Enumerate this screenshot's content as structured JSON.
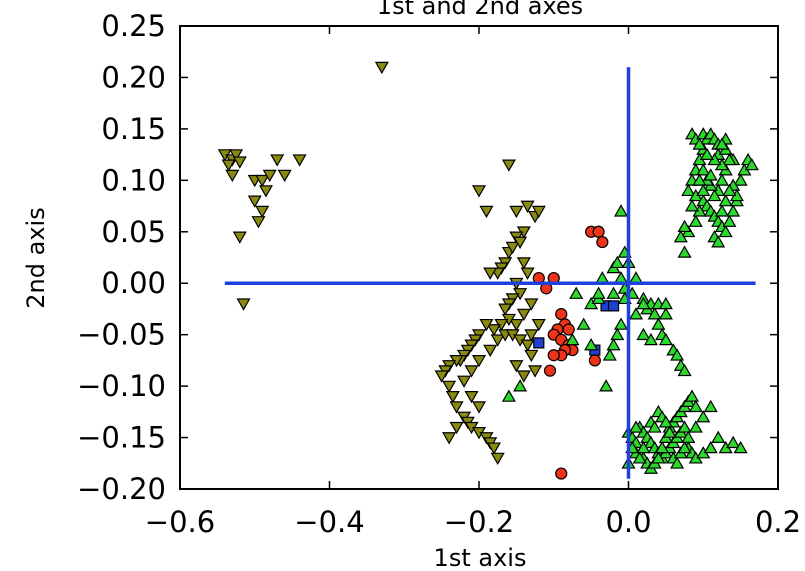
{
  "chart_data": {
    "type": "scatter",
    "title": "1st and 2nd axes",
    "xlabel": "1st axis",
    "ylabel": "2nd axis",
    "xlim": [
      -0.6,
      0.2
    ],
    "ylim": [
      -0.2,
      0.25
    ],
    "x_ticks": [
      -0.6,
      -0.4,
      -0.2,
      0.0,
      0.2
    ],
    "x_tick_labels": [
      "−0.6",
      "−0.4",
      "−0.2",
      "0.0",
      "0.2"
    ],
    "y_ticks": [
      0.25,
      0.2,
      0.15,
      0.1,
      0.05,
      0.0,
      -0.05,
      -0.1,
      -0.15,
      -0.2
    ],
    "y_tick_labels": [
      "0.25",
      "0.20",
      "0.15",
      "0.10",
      "0.05",
      "0.00",
      "−0.05",
      "−0.10",
      "−0.15",
      "−0.20"
    ],
    "grid": false,
    "legend": "none",
    "reference_lines": [
      {
        "orientation": "horizontal",
        "y": 0.0,
        "x_range": [
          -0.54,
          0.17
        ],
        "color": "#1f3fe0"
      },
      {
        "orientation": "vertical",
        "x": 0.0,
        "y_range": [
          -0.19,
          0.21
        ],
        "color": "#1f3fe0"
      }
    ],
    "series": [
      {
        "marker": "triangle-down",
        "color": "#8a8a10",
        "points": [
          [
            -0.54,
            0.125
          ],
          [
            -0.53,
            0.12
          ],
          [
            -0.535,
            0.115
          ],
          [
            -0.525,
            0.125
          ],
          [
            -0.53,
            0.105
          ],
          [
            -0.52,
            0.118
          ],
          [
            -0.52,
            0.045
          ],
          [
            -0.515,
            -0.02
          ],
          [
            -0.5,
            0.1
          ],
          [
            -0.49,
            0.1
          ],
          [
            -0.485,
            0.09
          ],
          [
            -0.49,
            0.07
          ],
          [
            -0.48,
            0.105
          ],
          [
            -0.495,
            0.06
          ],
          [
            -0.5,
            0.08
          ],
          [
            -0.47,
            0.12
          ],
          [
            -0.46,
            0.105
          ],
          [
            -0.44,
            0.12
          ],
          [
            -0.33,
            0.21
          ],
          [
            -0.16,
            0.115
          ],
          [
            -0.15,
            0.07
          ],
          [
            -0.14,
            0.05
          ],
          [
            -0.135,
            0.075
          ],
          [
            -0.125,
            0.065
          ],
          [
            -0.12,
            0.07
          ],
          [
            -0.19,
            0.07
          ],
          [
            -0.2,
            0.09
          ],
          [
            -0.16,
            0.03
          ],
          [
            -0.155,
            0.035
          ],
          [
            -0.15,
            0.045
          ],
          [
            -0.145,
            0.04
          ],
          [
            -0.165,
            0.02
          ],
          [
            -0.17,
            0.015
          ],
          [
            -0.175,
            0.01
          ],
          [
            -0.185,
            0.01
          ],
          [
            -0.14,
            0.02
          ],
          [
            -0.135,
            0.01
          ],
          [
            -0.15,
            0.0
          ],
          [
            -0.145,
            -0.01
          ],
          [
            -0.155,
            -0.015
          ],
          [
            -0.16,
            -0.02
          ],
          [
            -0.165,
            -0.025
          ],
          [
            -0.13,
            -0.02
          ],
          [
            -0.14,
            -0.03
          ],
          [
            -0.15,
            -0.04
          ],
          [
            -0.16,
            -0.035
          ],
          [
            -0.17,
            -0.04
          ],
          [
            -0.18,
            -0.045
          ],
          [
            -0.19,
            -0.04
          ],
          [
            -0.2,
            -0.05
          ],
          [
            -0.205,
            -0.055
          ],
          [
            -0.21,
            -0.06
          ],
          [
            -0.215,
            -0.065
          ],
          [
            -0.22,
            -0.07
          ],
          [
            -0.225,
            -0.075
          ],
          [
            -0.23,
            -0.075
          ],
          [
            -0.24,
            -0.08
          ],
          [
            -0.245,
            -0.085
          ],
          [
            -0.25,
            -0.09
          ],
          [
            -0.24,
            -0.1
          ],
          [
            -0.235,
            -0.11
          ],
          [
            -0.23,
            -0.12
          ],
          [
            -0.22,
            -0.13
          ],
          [
            -0.215,
            -0.135
          ],
          [
            -0.21,
            -0.14
          ],
          [
            -0.2,
            -0.145
          ],
          [
            -0.19,
            -0.15
          ],
          [
            -0.185,
            -0.155
          ],
          [
            -0.18,
            -0.16
          ],
          [
            -0.175,
            -0.17
          ],
          [
            -0.24,
            -0.15
          ],
          [
            -0.23,
            -0.14
          ],
          [
            -0.2,
            -0.12
          ],
          [
            -0.21,
            -0.11
          ],
          [
            -0.22,
            -0.095
          ],
          [
            -0.21,
            -0.085
          ],
          [
            -0.2,
            -0.075
          ],
          [
            -0.185,
            -0.065
          ],
          [
            -0.175,
            -0.055
          ],
          [
            -0.165,
            -0.05
          ],
          [
            -0.155,
            -0.05
          ],
          [
            -0.145,
            -0.055
          ],
          [
            -0.135,
            -0.06
          ],
          [
            -0.13,
            -0.07
          ],
          [
            -0.125,
            -0.085
          ],
          [
            -0.14,
            -0.09
          ],
          [
            -0.15,
            -0.08
          ],
          [
            -0.13,
            -0.05
          ],
          [
            -0.12,
            -0.04
          ]
        ]
      },
      {
        "marker": "circle",
        "color": "#ee3319",
        "points": [
          [
            -0.1,
            0.005
          ],
          [
            -0.12,
            0.005
          ],
          [
            -0.11,
            -0.005
          ],
          [
            -0.09,
            -0.03
          ],
          [
            -0.085,
            -0.04
          ],
          [
            -0.08,
            -0.045
          ],
          [
            -0.095,
            -0.045
          ],
          [
            -0.1,
            -0.05
          ],
          [
            -0.09,
            -0.055
          ],
          [
            -0.08,
            -0.06
          ],
          [
            -0.075,
            -0.065
          ],
          [
            -0.085,
            -0.065
          ],
          [
            -0.09,
            -0.07
          ],
          [
            -0.1,
            -0.07
          ],
          [
            -0.105,
            -0.085
          ],
          [
            -0.05,
            0.05
          ],
          [
            -0.04,
            0.05
          ],
          [
            -0.035,
            0.04
          ],
          [
            -0.045,
            -0.075
          ],
          [
            -0.09,
            -0.185
          ]
        ]
      },
      {
        "marker": "square",
        "color": "#1e3fcf",
        "points": [
          [
            -0.12,
            -0.058
          ],
          [
            -0.045,
            -0.065
          ],
          [
            -0.03,
            -0.022
          ],
          [
            -0.02,
            -0.022
          ]
        ]
      },
      {
        "marker": "triangle-up",
        "color": "#2bd82b",
        "points": [
          [
            -0.01,
            0.07
          ],
          [
            -0.005,
            0.03
          ],
          [
            0.0,
            0.02
          ],
          [
            -0.02,
            0.015
          ],
          [
            -0.015,
            0.02
          ],
          [
            -0.01,
            0.005
          ],
          [
            0.01,
            0.005
          ],
          [
            -0.005,
            -0.005
          ],
          [
            0.005,
            -0.01
          ],
          [
            0.02,
            -0.015
          ],
          [
            0.025,
            -0.025
          ],
          [
            0.03,
            -0.02
          ],
          [
            0.035,
            -0.03
          ],
          [
            0.04,
            -0.04
          ],
          [
            0.045,
            -0.05
          ],
          [
            0.05,
            -0.055
          ],
          [
            0.02,
            -0.02
          ],
          [
            0.01,
            -0.03
          ],
          [
            -0.01,
            -0.04
          ],
          [
            -0.015,
            -0.05
          ],
          [
            -0.02,
            -0.06
          ],
          [
            -0.025,
            -0.07
          ],
          [
            0.02,
            -0.05
          ],
          [
            0.03,
            -0.055
          ],
          [
            0.04,
            -0.02
          ],
          [
            0.05,
            -0.02
          ],
          [
            0.05,
            -0.03
          ],
          [
            0.06,
            -0.065
          ],
          [
            0.065,
            -0.07
          ],
          [
            0.07,
            -0.08
          ],
          [
            0.075,
            -0.085
          ],
          [
            -0.03,
            -0.1
          ],
          [
            -0.05,
            -0.06
          ],
          [
            -0.06,
            -0.04
          ],
          [
            -0.05,
            -0.02
          ],
          [
            -0.04,
            -0.015
          ],
          [
            -0.07,
            -0.01
          ],
          [
            -0.16,
            -0.11
          ],
          [
            -0.145,
            -0.1
          ],
          [
            -0.075,
            -0.055
          ],
          [
            -0.04,
            -0.01
          ],
          [
            -0.035,
            0.005
          ],
          [
            -0.02,
            -0.01
          ],
          [
            -0.005,
            -0.015
          ],
          [
            0.0,
            -0.145
          ],
          [
            0.005,
            -0.15
          ],
          [
            0.01,
            -0.155
          ],
          [
            0.015,
            -0.14
          ],
          [
            0.02,
            -0.145
          ],
          [
            0.025,
            -0.15
          ],
          [
            0.03,
            -0.155
          ],
          [
            0.035,
            -0.16
          ],
          [
            0.04,
            -0.165
          ],
          [
            0.045,
            -0.17
          ],
          [
            0.05,
            -0.165
          ],
          [
            0.055,
            -0.16
          ],
          [
            0.06,
            -0.155
          ],
          [
            0.065,
            -0.15
          ],
          [
            0.07,
            -0.145
          ],
          [
            0.075,
            -0.14
          ],
          [
            0.08,
            -0.16
          ],
          [
            0.085,
            -0.165
          ],
          [
            0.09,
            -0.17
          ],
          [
            0.1,
            -0.165
          ],
          [
            0.11,
            -0.16
          ],
          [
            0.02,
            -0.17
          ],
          [
            0.025,
            -0.175
          ],
          [
            0.03,
            -0.18
          ],
          [
            0.035,
            -0.175
          ],
          [
            0.04,
            -0.17
          ],
          [
            0.045,
            -0.16
          ],
          [
            0.05,
            -0.15
          ],
          [
            0.055,
            -0.14
          ],
          [
            0.06,
            -0.135
          ],
          [
            0.065,
            -0.13
          ],
          [
            0.07,
            -0.125
          ],
          [
            0.075,
            -0.12
          ],
          [
            0.08,
            -0.115
          ],
          [
            0.085,
            -0.11
          ],
          [
            0.09,
            -0.12
          ],
          [
            0.01,
            -0.165
          ],
          [
            0.015,
            -0.17
          ],
          [
            0.0,
            -0.175
          ],
          [
            0.005,
            -0.16
          ],
          [
            0.04,
            -0.125
          ],
          [
            0.045,
            -0.13
          ],
          [
            0.05,
            -0.135
          ],
          [
            0.055,
            -0.145
          ],
          [
            0.03,
            -0.135
          ],
          [
            0.035,
            -0.14
          ],
          [
            0.06,
            -0.17
          ],
          [
            0.065,
            -0.175
          ],
          [
            0.07,
            -0.165
          ],
          [
            0.075,
            -0.16
          ],
          [
            0.08,
            -0.15
          ],
          [
            0.09,
            -0.14
          ],
          [
            0.1,
            -0.13
          ],
          [
            0.11,
            -0.12
          ],
          [
            0.12,
            -0.15
          ],
          [
            0.13,
            -0.16
          ],
          [
            0.02,
            -0.16
          ],
          [
            0.01,
            -0.14
          ],
          [
            0.14,
            -0.155
          ],
          [
            0.15,
            -0.16
          ],
          [
            0.085,
            0.145
          ],
          [
            0.09,
            0.14
          ],
          [
            0.1,
            0.145
          ],
          [
            0.105,
            0.14
          ],
          [
            0.11,
            0.145
          ],
          [
            0.115,
            0.14
          ],
          [
            0.12,
            0.135
          ],
          [
            0.1,
            0.13
          ],
          [
            0.095,
            0.12
          ],
          [
            0.09,
            0.11
          ],
          [
            0.085,
            0.1
          ],
          [
            0.08,
            0.09
          ],
          [
            0.09,
            0.085
          ],
          [
            0.1,
            0.08
          ],
          [
            0.105,
            0.075
          ],
          [
            0.11,
            0.07
          ],
          [
            0.115,
            0.065
          ],
          [
            0.12,
            0.06
          ],
          [
            0.125,
            0.055
          ],
          [
            0.13,
            0.05
          ],
          [
            0.135,
            0.06
          ],
          [
            0.14,
            0.07
          ],
          [
            0.145,
            0.08
          ],
          [
            0.15,
            0.1
          ],
          [
            0.155,
            0.11
          ],
          [
            0.16,
            0.12
          ],
          [
            0.165,
            0.115
          ],
          [
            0.14,
            0.12
          ],
          [
            0.13,
            0.11
          ],
          [
            0.125,
            0.1
          ],
          [
            0.12,
            0.09
          ],
          [
            0.115,
            0.085
          ],
          [
            0.11,
            0.095
          ],
          [
            0.105,
            0.1
          ],
          [
            0.1,
            0.11
          ],
          [
            0.095,
            0.1
          ],
          [
            0.12,
            0.125
          ],
          [
            0.13,
            0.13
          ],
          [
            0.135,
            0.12
          ],
          [
            0.125,
            0.115
          ],
          [
            0.14,
            0.095
          ],
          [
            0.145,
            0.085
          ],
          [
            0.115,
            0.045
          ],
          [
            0.12,
            0.04
          ],
          [
            0.125,
            0.07
          ],
          [
            0.13,
            0.08
          ],
          [
            0.135,
            0.09
          ],
          [
            0.08,
            0.05
          ],
          [
            0.075,
            0.055
          ],
          [
            0.07,
            0.045
          ],
          [
            0.075,
            0.03
          ],
          [
            0.09,
            0.06
          ],
          [
            0.095,
            0.07
          ],
          [
            0.085,
            0.075
          ],
          [
            0.1,
            0.09
          ],
          [
            0.11,
            0.105
          ],
          [
            0.115,
            0.12
          ],
          [
            0.105,
            0.125
          ],
          [
            0.095,
            0.135
          ],
          [
            0.13,
            0.14
          ],
          [
            0.125,
            0.135
          ]
        ]
      }
    ]
  }
}
